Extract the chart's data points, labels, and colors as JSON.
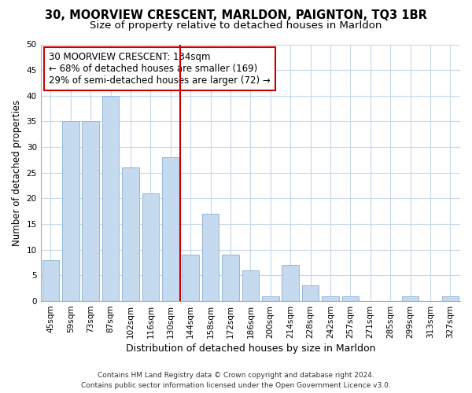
{
  "title1": "30, MOORVIEW CRESCENT, MARLDON, PAIGNTON, TQ3 1BR",
  "title2": "Size of property relative to detached houses in Marldon",
  "xlabel": "Distribution of detached houses by size in Marldon",
  "ylabel": "Number of detached properties",
  "categories": [
    "45sqm",
    "59sqm",
    "73sqm",
    "87sqm",
    "102sqm",
    "116sqm",
    "130sqm",
    "144sqm",
    "158sqm",
    "172sqm",
    "186sqm",
    "200sqm",
    "214sqm",
    "228sqm",
    "242sqm",
    "257sqm",
    "271sqm",
    "285sqm",
    "299sqm",
    "313sqm",
    "327sqm"
  ],
  "values": [
    8,
    35,
    35,
    40,
    26,
    21,
    28,
    9,
    17,
    9,
    6,
    1,
    7,
    3,
    1,
    1,
    0,
    0,
    1,
    0,
    1
  ],
  "bar_color": "#c5d9ef",
  "bar_edge_color": "#94b8d8",
  "bar_width": 0.85,
  "vline_x": 6.5,
  "vline_color": "#cc0000",
  "annotation_text": "30 MOORVIEW CRESCENT: 134sqm\n← 68% of detached houses are smaller (169)\n29% of semi-detached houses are larger (72) →",
  "annotation_box_facecolor": "#ffffff",
  "annotation_box_edgecolor": "#cc0000",
  "ylim": [
    0,
    50
  ],
  "yticks": [
    0,
    5,
    10,
    15,
    20,
    25,
    30,
    35,
    40,
    45,
    50
  ],
  "footnote": "Contains HM Land Registry data © Crown copyright and database right 2024.\nContains public sector information licensed under the Open Government Licence v3.0.",
  "bg_color": "#ffffff",
  "plot_bg_color": "#ffffff",
  "grid_color": "#c8d8e8",
  "title1_fontsize": 10.5,
  "title2_fontsize": 9.5,
  "xlabel_fontsize": 9,
  "ylabel_fontsize": 8.5,
  "tick_fontsize": 7.5,
  "annotation_fontsize": 8.5,
  "footnote_fontsize": 6.5
}
